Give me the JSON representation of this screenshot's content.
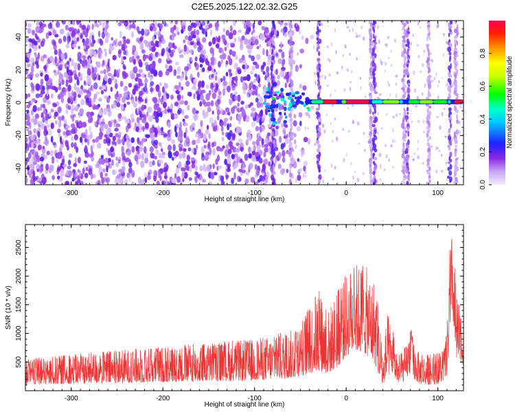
{
  "title": "C2E5.2025.122.02.32.G25",
  "chart_data": [
    {
      "type": "heatmap",
      "xlabel": "Height of straight line (km)",
      "ylabel": "Frequency (Hz)",
      "xlim": [
        -350,
        128
      ],
      "ylim": [
        -50,
        50
      ],
      "xticks": [
        -300,
        -200,
        -100,
        0,
        100
      ],
      "yticks": [
        -40,
        -20,
        0,
        20,
        40
      ],
      "colorbar": {
        "label": "Normalized spectral amplitude",
        "range": [
          0,
          1
        ],
        "ticks": [
          0.0,
          0.2,
          0.4,
          0.6,
          0.8
        ],
        "colormap": [
          "#f0e6ff",
          "#8a2be2",
          "#0000ff",
          "#00ffff",
          "#00ff00",
          "#ffff00",
          "#ff8000",
          "#ff0000"
        ]
      },
      "features": {
        "noise_region_x": [
          -350,
          -55
        ],
        "clear_region_x": [
          -55,
          125
        ],
        "vertical_streaks_x": [
          -80,
          -60,
          -30,
          27,
          31,
          63,
          67,
          90,
          113,
          120
        ],
        "signal_line_freq": 0.5,
        "signal_start_x": -90,
        "signal_end_x": 128
      }
    },
    {
      "type": "area",
      "xlabel": "Height of straight line (km)",
      "ylabel": "SNR (10 * v/v)",
      "xlim": [
        -350,
        128
      ],
      "ylim": [
        0,
        2900
      ],
      "xticks": [
        -300,
        -200,
        -100,
        0,
        100
      ],
      "yticks": [
        500,
        1000,
        1500,
        2000,
        2500
      ],
      "series": [
        {
          "color": "#ee3333",
          "x": [
            -350,
            -300,
            -250,
            -200,
            -150,
            -120,
            -100,
            -80,
            -60,
            -50,
            -40,
            -30,
            -20,
            -10,
            0,
            10,
            20,
            30,
            35,
            40,
            45,
            50,
            55,
            60,
            65,
            70,
            75,
            80,
            90,
            100,
            105,
            110,
            113,
            116,
            118,
            120,
            125,
            128
          ],
          "max": [
            550,
            640,
            720,
            780,
            850,
            880,
            900,
            980,
            1060,
            1150,
            1500,
            1800,
            1400,
            1750,
            2050,
            2250,
            2200,
            2000,
            1600,
            600,
            1350,
            1150,
            700,
            650,
            800,
            1150,
            800,
            650,
            650,
            680,
            700,
            1000,
            2500,
            2800,
            2300,
            1800,
            1300,
            1200
          ],
          "min": [
            100,
            120,
            130,
            150,
            160,
            170,
            180,
            200,
            220,
            250,
            300,
            350,
            300,
            400,
            600,
            700,
            650,
            500,
            300,
            80,
            250,
            300,
            150,
            120,
            200,
            300,
            180,
            120,
            100,
            120,
            150,
            250,
            800,
            1400,
            800,
            500,
            500,
            450
          ]
        }
      ]
    }
  ]
}
